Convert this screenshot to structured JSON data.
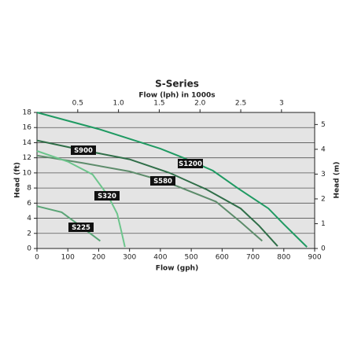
{
  "chart_data": {
    "type": "line",
    "title": "S-Series",
    "x_label": "Flow (gph)",
    "x2_label": "Flow (lph) in 1000s",
    "y_label": "Head (ft)",
    "y2_label": "Head (m)",
    "xlim": [
      0,
      900
    ],
    "xticks": [
      0,
      100,
      200,
      300,
      400,
      500,
      600,
      700,
      800,
      900
    ],
    "x2lim": [
      0,
      3.40687
    ],
    "x2ticks": [
      0.5,
      {
        "value": 1,
        "label": "1.0"
      },
      1.5,
      {
        "value": 2,
        "label": "2.0"
      },
      2.5,
      3
    ],
    "ylim": [
      0,
      18
    ],
    "yticks": [
      0,
      2,
      4,
      6,
      8,
      10,
      12,
      14,
      16,
      18
    ],
    "y2lim": [
      0,
      5.4864
    ],
    "y2ticks": [
      0,
      1,
      2,
      3,
      4,
      5
    ],
    "grid": true,
    "series": [
      {
        "name": "S1200",
        "color": "#1f9a62",
        "x": [
          0,
          200,
          400,
          480,
          570,
          650,
          750,
          800,
          875
        ],
        "values": [
          18,
          15.8,
          13.2,
          11.9,
          10.3,
          8,
          5.3,
          3.2,
          0.2
        ]
      },
      {
        "name": "S900",
        "color": "#2f6e48",
        "x": [
          0,
          150,
          300,
          430,
          550,
          660,
          720,
          780
        ],
        "values": [
          14.3,
          13,
          11.8,
          10,
          7.8,
          5.3,
          3,
          0.3
        ]
      },
      {
        "name": "S580",
        "color": "#5d8c6b",
        "x": [
          0,
          150,
          300,
          420,
          580,
          660,
          730
        ],
        "values": [
          12.3,
          11.3,
          10.2,
          8.8,
          6.2,
          3.5,
          1
        ]
      },
      {
        "name": "S320",
        "color": "#6cc58c",
        "x": [
          0,
          100,
          180,
          230,
          260,
          275,
          285
        ],
        "values": [
          12.9,
          11.5,
          9.8,
          7,
          4.6,
          2,
          0.2
        ]
      },
      {
        "name": "S225",
        "color": "#5aa476",
        "x": [
          0,
          80,
          140,
          205
        ],
        "values": [
          5.6,
          4.8,
          3,
          1
        ]
      }
    ]
  }
}
